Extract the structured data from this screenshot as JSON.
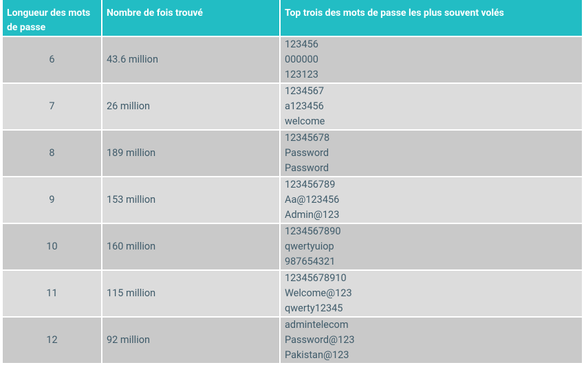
{
  "table": {
    "header": [
      "Longueur des mots de passe",
      "Nombre de fois trouvé",
      "Top trois des mots de passe les plus souvent volés"
    ],
    "rows": [
      {
        "length": "6",
        "count": "43.6 million",
        "passwords": [
          "123456",
          "000000",
          "123123"
        ]
      },
      {
        "length": "7",
        "count": "26 million",
        "passwords": [
          "1234567",
          "a123456",
          "welcome"
        ]
      },
      {
        "length": "8",
        "count": "189 million",
        "passwords": [
          "12345678",
          "Password",
          "Password"
        ]
      },
      {
        "length": "9",
        "count": "153 million",
        "passwords": [
          "123456789",
          "Aa@123456",
          "Admin@123"
        ]
      },
      {
        "length": "10",
        "count": "160 million",
        "passwords": [
          "1234567890",
          "qwertyuiop",
          "987654321"
        ]
      },
      {
        "length": "11",
        "count": "115 million",
        "passwords": [
          "12345678910",
          "Welcome@123",
          "qwerty12345"
        ]
      },
      {
        "length": "12",
        "count": "92 million",
        "passwords": [
          "admintelecom",
          "Password@123",
          "Pakistan@123"
        ]
      }
    ]
  }
}
